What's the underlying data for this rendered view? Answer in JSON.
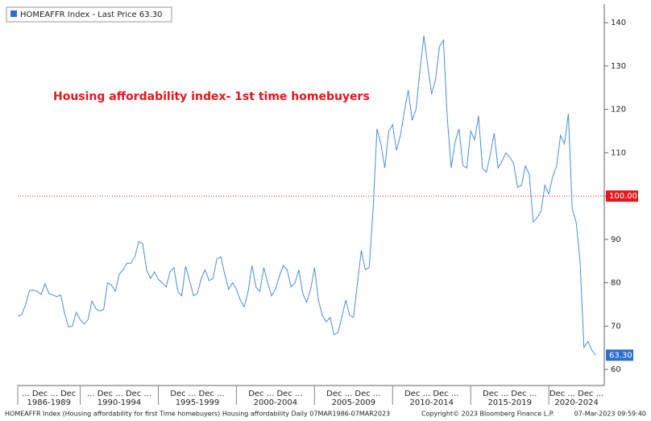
{
  "chart_data": {
    "type": "line",
    "legend": "HOMEAFFR Index - Last Price 63.30",
    "annotation": "Housing affordability index- 1st time homebuyers",
    "series": [
      {
        "name": "HOMEAFFR Index",
        "color": "#4a8fd8",
        "values": [
          72.3,
          72.6,
          74.9,
          78.2,
          78.3,
          78,
          77.3,
          79.8,
          77.5,
          77.2,
          76.8,
          77.2,
          73,
          69.8,
          70,
          73.2,
          71.5,
          70.5,
          71.5,
          75.8,
          74,
          73.5,
          73.8,
          80,
          79.5,
          78,
          82,
          83,
          84.5,
          84.5,
          86,
          89.5,
          89,
          83,
          81,
          82.5,
          80.8,
          80,
          79,
          82.5,
          83.5,
          78,
          77,
          83.8,
          80.5,
          77,
          77.5,
          81,
          83,
          80.5,
          81,
          85.5,
          86,
          82,
          78.5,
          80,
          78.5,
          76,
          74.5,
          78,
          84,
          79,
          78,
          83.5,
          80,
          77,
          78.5,
          81.5,
          84,
          83,
          79,
          80,
          83,
          77.5,
          75.5,
          78.5,
          83.5,
          76,
          72.5,
          71,
          72,
          68,
          68.5,
          72,
          76,
          72.5,
          72,
          80,
          87.5,
          83,
          83.5,
          97,
          115.5,
          112,
          106.5,
          115,
          116.5,
          110.5,
          114,
          119.5,
          124.5,
          117.5,
          120,
          129,
          137,
          130,
          123.5,
          127,
          134.5,
          136,
          118,
          106.5,
          112.5,
          115.5,
          107,
          106.5,
          115,
          113,
          118.5,
          106.5,
          105.5,
          109.5,
          114.5,
          106.5,
          108,
          110,
          109,
          107.5,
          102,
          102.5,
          107,
          105,
          94,
          95,
          96.5,
          102.5,
          100.5,
          104.5,
          107,
          114,
          112,
          119,
          97,
          94,
          85,
          65,
          66.5,
          64.5,
          63.3
        ]
      }
    ],
    "x": [
      1986,
      1986.25,
      1986.5,
      1986.75,
      1987,
      1987.25,
      1987.5,
      1987.75,
      1988,
      1988.25,
      1988.5,
      1988.75,
      1989,
      1989.25,
      1989.5,
      1989.75,
      1990,
      1990.25,
      1990.5,
      1990.75,
      1991,
      1991.25,
      1991.5,
      1991.75,
      1992,
      1992.25,
      1992.5,
      1992.75,
      1993,
      1993.25,
      1993.5,
      1993.75,
      1994,
      1994.25,
      1994.5,
      1994.75,
      1995,
      1995.25,
      1995.5,
      1995.75,
      1996,
      1996.25,
      1996.5,
      1996.75,
      1997,
      1997.25,
      1997.5,
      1997.75,
      1998,
      1998.25,
      1998.5,
      1998.75,
      1999,
      1999.25,
      1999.5,
      1999.75,
      2000,
      2000.25,
      2000.5,
      2000.75,
      2001,
      2001.25,
      2001.5,
      2001.75,
      2002,
      2002.25,
      2002.5,
      2002.75,
      2003,
      2003.25,
      2003.5,
      2003.75,
      2004,
      2004.25,
      2004.5,
      2004.75,
      2005,
      2005.25,
      2005.5,
      2005.75,
      2006,
      2006.25,
      2006.5,
      2006.75,
      2007,
      2007.25,
      2007.5,
      2007.75,
      2008,
      2008.25,
      2008.5,
      2008.75,
      2009,
      2009.25,
      2009.5,
      2009.75,
      2010,
      2010.25,
      2010.5,
      2010.75,
      2011,
      2011.25,
      2011.5,
      2011.75,
      2012,
      2012.25,
      2012.5,
      2012.75,
      2013,
      2013.25,
      2013.5,
      2013.75,
      2014,
      2014.25,
      2014.5,
      2014.75,
      2015,
      2015.25,
      2015.5,
      2015.75,
      2016,
      2016.25,
      2016.5,
      2016.75,
      2017,
      2017.25,
      2017.5,
      2017.75,
      2018,
      2018.25,
      2018.5,
      2018.75,
      2019,
      2019.25,
      2019.5,
      2019.75,
      2020,
      2020.25,
      2020.5,
      2020.75,
      2021,
      2021.25,
      2021.5,
      2021.75,
      2022,
      2022.25,
      2022.5,
      2022.75,
      2023
    ],
    "xlim": [
      1986,
      2023.55
    ],
    "ylim": [
      56.3,
      144.3
    ],
    "yticks": [
      60,
      70,
      80,
      90,
      100,
      110,
      120,
      130,
      140
    ],
    "grid": false,
    "reference_line": {
      "value": 100,
      "label": "100.00",
      "color": "#e8161c"
    },
    "last_label": {
      "value": 63.3,
      "label": "63.30"
    },
    "periods": [
      {
        "label": "1986-1989",
        "start": 1986,
        "ticks_text": "... Dec ... Dec"
      },
      {
        "label": "1990-1994",
        "start": 1990,
        "ticks_text": "... Dec ... Dec ..."
      },
      {
        "label": "1995-1999",
        "start": 1995,
        "ticks_text": "Dec ... Dec ..."
      },
      {
        "label": "2000-2004",
        "start": 2000,
        "ticks_text": "Dec ... Dec ..."
      },
      {
        "label": "2005-2009",
        "start": 2005,
        "ticks_text": "Dec ... Dec ..."
      },
      {
        "label": "2010-2014",
        "start": 2010,
        "ticks_text": "Dec ... Dec ..."
      },
      {
        "label": "2015-2019",
        "start": 2015,
        "ticks_text": "Dec ... Dec ..."
      },
      {
        "label": "2020-2024",
        "start": 2020,
        "ticks_text": "Dec ... Dec ..."
      }
    ],
    "footer": {
      "left": "HOMEAFFR Index (Housing affordability for first Time homebuyers) Housing affordability  Daily 07MAR1986-07MAR2023",
      "center": "Copyright© 2023 Bloomberg Finance L.P.",
      "right": "07-Mar-2023 09:59:40"
    }
  }
}
